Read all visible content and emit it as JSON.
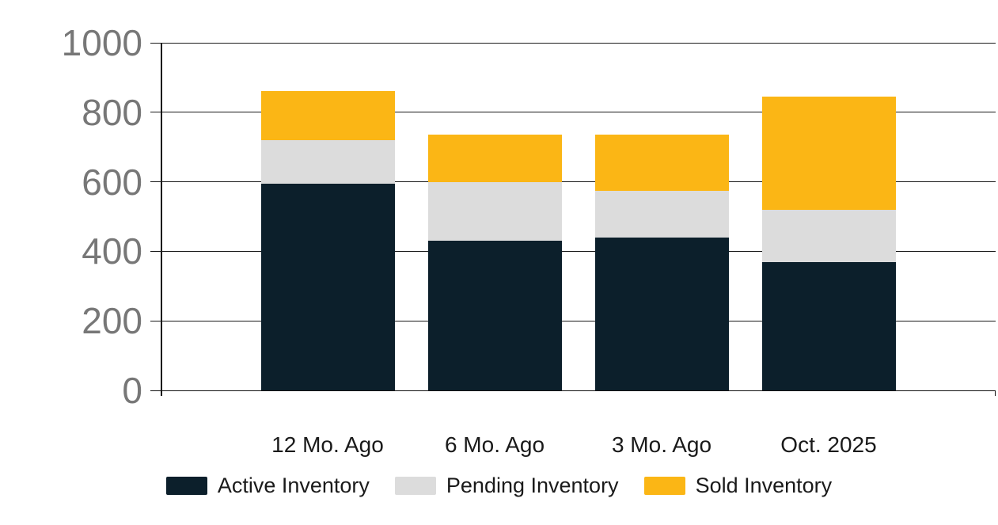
{
  "chart_data": {
    "type": "bar",
    "stacked": true,
    "title": "",
    "xlabel": "",
    "ylabel": "",
    "categories": [
      "12 Mo. Ago",
      "6 Mo. Ago",
      "3 Mo. Ago",
      "Oct. 2025"
    ],
    "series": [
      {
        "name": "Active Inventory",
        "color": "#0C1F2B",
        "values": [
          595,
          430,
          440,
          370
        ]
      },
      {
        "name": "Pending Inventory",
        "color": "#DCDCDC",
        "values": [
          125,
          170,
          135,
          150
        ]
      },
      {
        "name": "Sold Inventory",
        "color": "#FBB615",
        "values": [
          140,
          135,
          160,
          325
        ]
      }
    ],
    "stack_totals": [
      860,
      735,
      735,
      845
    ],
    "ylim": [
      0,
      1000
    ],
    "yticks": [
      0,
      200,
      400,
      600,
      800,
      1000
    ],
    "grid": true,
    "legend_position": "bottom"
  },
  "colors": {
    "background": "#FFFFFF",
    "gridline": "#1A1A1A",
    "axis": "#111111",
    "y_tick_label": "#777777",
    "x_tick_label": "#1A1A1A",
    "legend_text": "#1A1A1A"
  }
}
